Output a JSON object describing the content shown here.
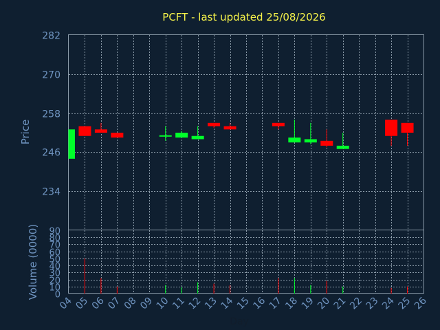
{
  "title": "PCFT - last updated 25/08/2026",
  "colors": {
    "up": "#00ff2a",
    "down": "#ff0000",
    "text": "#6f94c0",
    "title": "#f5f24a",
    "background": "#0f1f30",
    "grid": "#8a9aa8"
  },
  "chart_data": [
    {
      "type": "candlestick",
      "ylabel": "Price",
      "ylim": [
        222,
        282
      ],
      "yticks": [
        234,
        246,
        258,
        270,
        282
      ],
      "grid": true,
      "candles": [
        {
          "day": "04",
          "open": 244,
          "close": 253,
          "high": 253,
          "low": 244
        },
        {
          "day": "05",
          "open": 254,
          "close": 251,
          "high": 254,
          "low": 251
        },
        {
          "day": "06",
          "open": 253,
          "close": 252,
          "high": 255,
          "low": 252
        },
        {
          "day": "07",
          "open": 252,
          "close": 250.5,
          "high": 252,
          "low": 250.5
        },
        {
          "day": "10",
          "open": 251,
          "close": 251.2,
          "high": 254,
          "low": 249.5
        },
        {
          "day": "11",
          "open": 250.5,
          "close": 252,
          "high": 252.5,
          "low": 250.5
        },
        {
          "day": "12",
          "open": 250,
          "close": 251,
          "high": 254,
          "low": 250
        },
        {
          "day": "13",
          "open": 255,
          "close": 254,
          "high": 255,
          "low": 253.5
        },
        {
          "day": "14",
          "open": 254,
          "close": 253,
          "high": 255,
          "low": 253
        },
        {
          "day": "17",
          "open": 255,
          "close": 254,
          "high": 255,
          "low": 253
        },
        {
          "day": "18",
          "open": 249,
          "close": 250.5,
          "high": 256,
          "low": 249
        },
        {
          "day": "19",
          "open": 249,
          "close": 250,
          "high": 255,
          "low": 248.5
        },
        {
          "day": "20",
          "open": 249.5,
          "close": 248,
          "high": 253,
          "low": 247.5
        },
        {
          "day": "21",
          "open": 247,
          "close": 248,
          "high": 252,
          "low": 247
        },
        {
          "day": "24",
          "open": 256,
          "close": 251,
          "high": 256,
          "low": 248
        },
        {
          "day": "25",
          "open": 255,
          "close": 252,
          "high": 255,
          "low": 248
        }
      ]
    },
    {
      "type": "bar",
      "xlabel": "Day",
      "ylabel": "Volume (0000)",
      "ylim": [
        0,
        90
      ],
      "yticks": [
        0,
        10,
        20,
        30,
        40,
        50,
        60,
        70,
        80,
        90
      ],
      "grid": true,
      "categories": [
        "04",
        "05",
        "06",
        "07",
        "08",
        "09",
        "10",
        "11",
        "12",
        "13",
        "14",
        "15",
        "16",
        "17",
        "18",
        "19",
        "20",
        "21",
        "22",
        "23",
        "24",
        "25",
        "26"
      ],
      "volumes": [
        {
          "day": "05",
          "value": 50,
          "direction": "down"
        },
        {
          "day": "06",
          "value": 22,
          "direction": "down"
        },
        {
          "day": "07",
          "value": 10,
          "direction": "down"
        },
        {
          "day": "10",
          "value": 12,
          "direction": "up"
        },
        {
          "day": "11",
          "value": 9,
          "direction": "up"
        },
        {
          "day": "12",
          "value": 16,
          "direction": "up"
        },
        {
          "day": "13",
          "value": 14,
          "direction": "down"
        },
        {
          "day": "14",
          "value": 12,
          "direction": "down"
        },
        {
          "day": "17",
          "value": 22,
          "direction": "down"
        },
        {
          "day": "18",
          "value": 22,
          "direction": "up"
        },
        {
          "day": "19",
          "value": 12,
          "direction": "up"
        },
        {
          "day": "20",
          "value": 18,
          "direction": "down"
        },
        {
          "day": "21",
          "value": 10,
          "direction": "up"
        },
        {
          "day": "24",
          "value": 8,
          "direction": "down"
        },
        {
          "day": "25",
          "value": 10,
          "direction": "down"
        }
      ]
    }
  ]
}
